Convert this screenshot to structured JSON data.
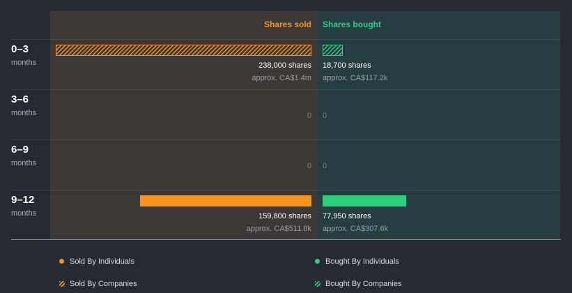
{
  "header": {
    "sold_label": "Shares sold",
    "bought_label": "Shares bought"
  },
  "rows": [
    {
      "range": "0–3",
      "unit": "months",
      "sold": {
        "shares": "238,000 shares",
        "approx": "approx. CA$1.4m"
      },
      "bought": {
        "shares": "18,700 shares",
        "approx": "approx. CA$117.2k"
      }
    },
    {
      "range": "3–6",
      "unit": "months",
      "sold_zero": "0",
      "bought_zero": "0"
    },
    {
      "range": "6–9",
      "unit": "months",
      "sold_zero": "0",
      "bought_zero": "0"
    },
    {
      "range": "9–12",
      "unit": "months",
      "sold": {
        "shares": "159,800 shares",
        "approx": "approx. CA$511.8k"
      },
      "bought": {
        "shares": "77,950 shares",
        "approx": "approx. CA$307.6k"
      }
    }
  ],
  "legend": {
    "sold_individuals": "Sold By Individuals",
    "sold_companies": "Sold By Companies",
    "bought_individuals": "Bought By Individuals",
    "bought_companies": "Bought By Companies"
  },
  "colors": {
    "sold": "#f7941d",
    "bought": "#2bd07b"
  },
  "chart_data": {
    "type": "bar",
    "categories": [
      "0–3",
      "3–6",
      "6–9",
      "9–12"
    ],
    "series": [
      {
        "name": "Sold By Individuals",
        "values": [
          0,
          0,
          0,
          159800
        ]
      },
      {
        "name": "Sold By Companies",
        "values": [
          238000,
          0,
          0,
          0
        ]
      },
      {
        "name": "Bought By Individuals",
        "values": [
          0,
          0,
          0,
          77950
        ]
      },
      {
        "name": "Bought By Companies",
        "values": [
          18700,
          0,
          0,
          0
        ]
      }
    ],
    "orientation": "diverging horizontal",
    "legend_position": "bottom"
  }
}
